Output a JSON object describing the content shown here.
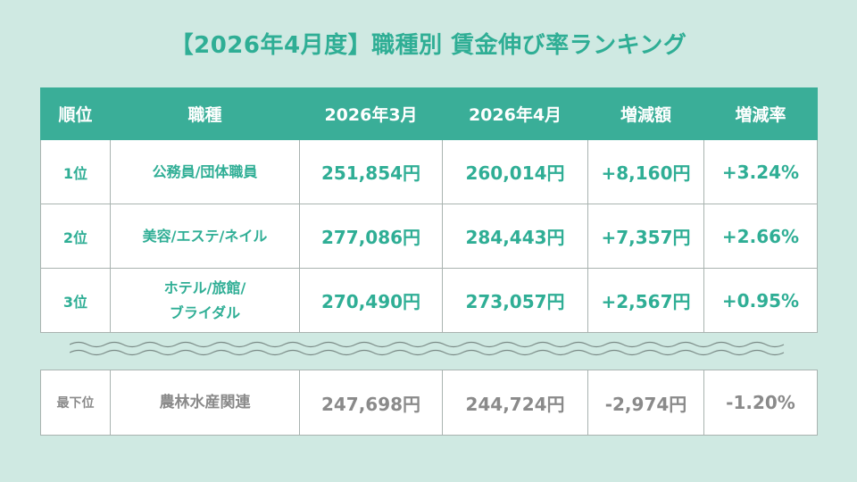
{
  "title": "【2026年4月度】職種別 賃金伸び率ランキング",
  "table": {
    "headers": [
      "順位",
      "職種",
      "2026年3月",
      "2026年4月",
      "増減額",
      "増減率"
    ],
    "rows": [
      {
        "rank": "1位",
        "job": "公務員/団体職員",
        "march": "251,854円",
        "april": "260,014円",
        "change": "+8,160円",
        "rate": "+3.24%"
      },
      {
        "rank": "2位",
        "job": "美容/エステ/ネイル",
        "march": "277,086円",
        "april": "284,443円",
        "change": "+7,357円",
        "rate": "+2.66%"
      },
      {
        "rank": "3位",
        "job_line1": "ホテル/旅館/",
        "job_line2": "ブライダル",
        "march": "270,490円",
        "april": "273,057円",
        "change": "+2,567円",
        "rate": "+0.95%"
      }
    ]
  },
  "bottom": {
    "rank": "最下位",
    "job": "農林水産関連",
    "march": "247,698円",
    "april": "244,724円",
    "change": "-2,974円",
    "rate": "-1.20%"
  },
  "colors": {
    "accent": "#3aae98",
    "background": "#cfe9e2",
    "muted_text": "#8a8a8a"
  }
}
